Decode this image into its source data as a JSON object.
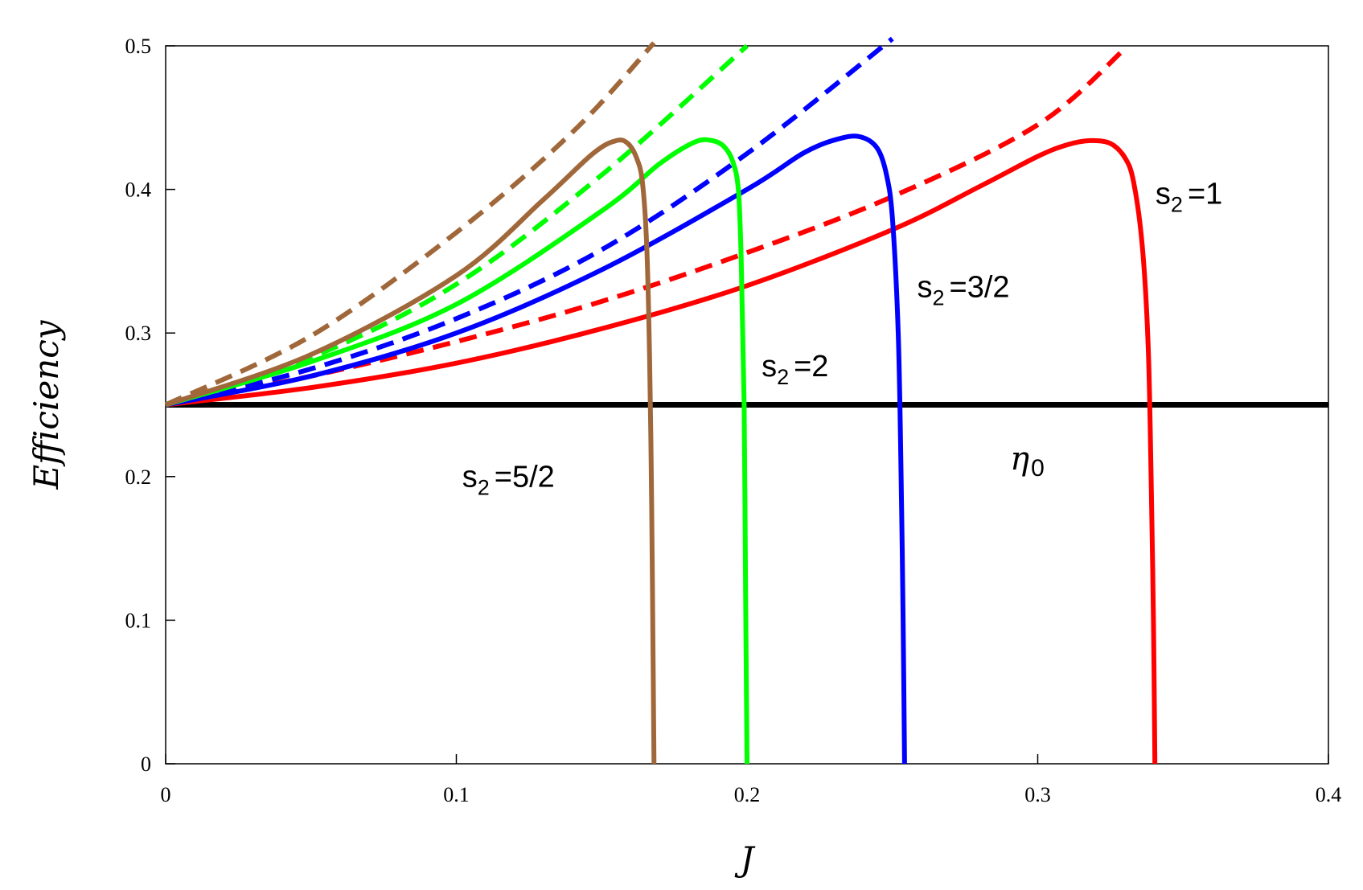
{
  "chart_data": {
    "type": "line",
    "xlabel": "J",
    "ylabel": "Efficiency",
    "xlim": [
      0,
      0.4
    ],
    "ylim": [
      0,
      0.5
    ],
    "xticks": [
      "0",
      "0.1",
      "0.2",
      "0.3",
      "0.4"
    ],
    "yticks": [
      "0",
      "0.1",
      "0.2",
      "0.3",
      "0.4",
      "0.5"
    ],
    "grid": false,
    "colors": {
      "s2_1": "#ff0000",
      "s2_3_2": "#0000ff",
      "s2_2": "#00ff00",
      "s2_5_2": "#a0683a",
      "eta0": "#000000"
    },
    "series": [
      {
        "key": "s2_1",
        "label_main": "s",
        "label_sub": "2",
        "label_rest": "=1",
        "style": "solid",
        "color": "#ff0000",
        "x": [
          0,
          0.05,
          0.1,
          0.15,
          0.2,
          0.25,
          0.28,
          0.3,
          0.31,
          0.318,
          0.325,
          0.33,
          0.333,
          0.336,
          0.338,
          0.339,
          0.3398,
          0.3403
        ],
        "y": [
          0.25,
          0.262,
          0.279,
          0.303,
          0.333,
          0.372,
          0.402,
          0.423,
          0.431,
          0.434,
          0.432,
          0.422,
          0.405,
          0.36,
          0.29,
          0.2,
          0.1,
          0
        ]
      },
      {
        "key": "s2_1_dashed",
        "style": "dashed",
        "color": "#ff0000",
        "x": [
          0,
          0.05,
          0.1,
          0.15,
          0.2,
          0.25,
          0.3,
          0.33
        ],
        "y": [
          0.25,
          0.27,
          0.294,
          0.322,
          0.356,
          0.395,
          0.445,
          0.498
        ]
      },
      {
        "key": "s2_3_2",
        "label_main": "s",
        "label_sub": "2",
        "label_rest": "=3/2",
        "style": "solid",
        "color": "#0000ff",
        "x": [
          0,
          0.05,
          0.1,
          0.15,
          0.2,
          0.22,
          0.233,
          0.24,
          0.245,
          0.248,
          0.25,
          0.252,
          0.253,
          0.2537,
          0.2542
        ],
        "y": [
          0.25,
          0.27,
          0.3,
          0.344,
          0.4,
          0.426,
          0.436,
          0.436,
          0.428,
          0.41,
          0.38,
          0.3,
          0.2,
          0.1,
          0
        ]
      },
      {
        "key": "s2_3_2_dashed",
        "style": "dashed",
        "color": "#0000ff",
        "x": [
          0,
          0.05,
          0.1,
          0.15,
          0.2,
          0.25
        ],
        "y": [
          0.25,
          0.275,
          0.31,
          0.358,
          0.425,
          0.505
        ]
      },
      {
        "key": "s2_2",
        "label_main": "s",
        "label_sub": "2",
        "label_rest": "=2",
        "style": "solid",
        "color": "#00ff00",
        "x": [
          0,
          0.05,
          0.1,
          0.15,
          0.17,
          0.182,
          0.188,
          0.192,
          0.195,
          0.197,
          0.198,
          0.199,
          0.1995,
          0.2
        ],
        "y": [
          0.25,
          0.28,
          0.32,
          0.385,
          0.418,
          0.433,
          0.434,
          0.43,
          0.42,
          0.4,
          0.35,
          0.25,
          0.12,
          0
        ]
      },
      {
        "key": "s2_2_dashed",
        "style": "dashed",
        "color": "#00ff00",
        "x": [
          0,
          0.05,
          0.1,
          0.15,
          0.2
        ],
        "y": [
          0.25,
          0.283,
          0.334,
          0.41,
          0.5
        ]
      },
      {
        "key": "s2_5_2",
        "label_main": "s",
        "label_sub": "2",
        "label_rest": "=5/2",
        "style": "solid",
        "color": "#a0683a",
        "x": [
          0,
          0.05,
          0.1,
          0.13,
          0.147,
          0.155,
          0.159,
          0.162,
          0.164,
          0.1655,
          0.1665,
          0.1672,
          0.1676,
          0.168
        ],
        "y": [
          0.25,
          0.285,
          0.34,
          0.393,
          0.425,
          0.434,
          0.432,
          0.422,
          0.405,
          0.36,
          0.28,
          0.18,
          0.09,
          0
        ]
      },
      {
        "key": "s2_5_2_dashed",
        "style": "dashed",
        "color": "#a0683a",
        "x": [
          0,
          0.05,
          0.1,
          0.14,
          0.168
        ],
        "y": [
          0.25,
          0.298,
          0.37,
          0.44,
          0.502
        ]
      },
      {
        "key": "eta0",
        "label_main": "η",
        "label_sub": "0",
        "label_rest": "",
        "style": "solid",
        "color": "#000000",
        "x": [
          0,
          0.4
        ],
        "y": [
          0.25,
          0.25
        ]
      }
    ]
  }
}
